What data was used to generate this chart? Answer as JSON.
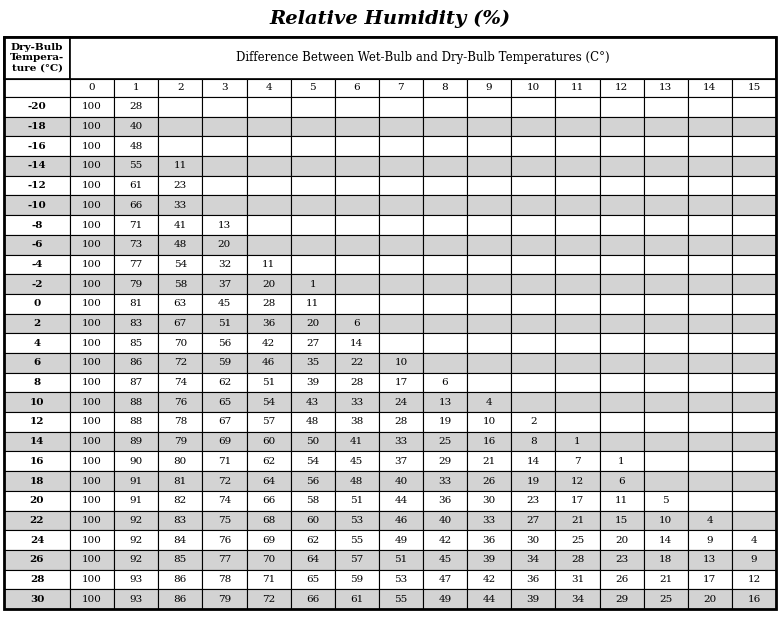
{
  "title": "Relative Humidity (%)",
  "col_header_main": "Difference Between Wet-Bulb and Dry-Bulb Temperatures (C°)",
  "row_header_label": "Dry-Bulb\nTempera-\nture (°C)",
  "col_labels": [
    "0",
    "1",
    "2",
    "3",
    "4",
    "5",
    "6",
    "7",
    "8",
    "9",
    "10",
    "11",
    "12",
    "13",
    "14",
    "15"
  ],
  "row_labels": [
    "-20",
    "-18",
    "-16",
    "-14",
    "-12",
    "-10",
    "-8",
    "-6",
    "-4",
    "-2",
    "0",
    "2",
    "4",
    "6",
    "8",
    "10",
    "12",
    "14",
    "16",
    "18",
    "20",
    "22",
    "24",
    "26",
    "28",
    "30"
  ],
  "table_data": [
    [
      "100",
      "28",
      "",
      "",
      "",
      "",
      "",
      "",
      "",
      "",
      "",
      "",
      "",
      "",
      "",
      ""
    ],
    [
      "100",
      "40",
      "",
      "",
      "",
      "",
      "",
      "",
      "",
      "",
      "",
      "",
      "",
      "",
      "",
      ""
    ],
    [
      "100",
      "48",
      "",
      "",
      "",
      "",
      "",
      "",
      "",
      "",
      "",
      "",
      "",
      "",
      "",
      ""
    ],
    [
      "100",
      "55",
      "11",
      "",
      "",
      "",
      "",
      "",
      "",
      "",
      "",
      "",
      "",
      "",
      "",
      ""
    ],
    [
      "100",
      "61",
      "23",
      "",
      "",
      "",
      "",
      "",
      "",
      "",
      "",
      "",
      "",
      "",
      "",
      ""
    ],
    [
      "100",
      "66",
      "33",
      "",
      "",
      "",
      "",
      "",
      "",
      "",
      "",
      "",
      "",
      "",
      "",
      ""
    ],
    [
      "100",
      "71",
      "41",
      "13",
      "",
      "",
      "",
      "",
      "",
      "",
      "",
      "",
      "",
      "",
      "",
      ""
    ],
    [
      "100",
      "73",
      "48",
      "20",
      "",
      "",
      "",
      "",
      "",
      "",
      "",
      "",
      "",
      "",
      "",
      ""
    ],
    [
      "100",
      "77",
      "54",
      "32",
      "11",
      "",
      "",
      "",
      "",
      "",
      "",
      "",
      "",
      "",
      "",
      ""
    ],
    [
      "100",
      "79",
      "58",
      "37",
      "20",
      "1",
      "",
      "",
      "",
      "",
      "",
      "",
      "",
      "",
      "",
      ""
    ],
    [
      "100",
      "81",
      "63",
      "45",
      "28",
      "11",
      "",
      "",
      "",
      "",
      "",
      "",
      "",
      "",
      "",
      ""
    ],
    [
      "100",
      "83",
      "67",
      "51",
      "36",
      "20",
      "6",
      "",
      "",
      "",
      "",
      "",
      "",
      "",
      "",
      ""
    ],
    [
      "100",
      "85",
      "70",
      "56",
      "42",
      "27",
      "14",
      "",
      "",
      "",
      "",
      "",
      "",
      "",
      "",
      ""
    ],
    [
      "100",
      "86",
      "72",
      "59",
      "46",
      "35",
      "22",
      "10",
      "",
      "",
      "",
      "",
      "",
      "",
      "",
      ""
    ],
    [
      "100",
      "87",
      "74",
      "62",
      "51",
      "39",
      "28",
      "17",
      "6",
      "",
      "",
      "",
      "",
      "",
      "",
      ""
    ],
    [
      "100",
      "88",
      "76",
      "65",
      "54",
      "43",
      "33",
      "24",
      "13",
      "4",
      "",
      "",
      "",
      "",
      "",
      ""
    ],
    [
      "100",
      "88",
      "78",
      "67",
      "57",
      "48",
      "38",
      "28",
      "19",
      "10",
      "2",
      "",
      "",
      "",
      "",
      ""
    ],
    [
      "100",
      "89",
      "79",
      "69",
      "60",
      "50",
      "41",
      "33",
      "25",
      "16",
      "8",
      "1",
      "",
      "",
      "",
      ""
    ],
    [
      "100",
      "90",
      "80",
      "71",
      "62",
      "54",
      "45",
      "37",
      "29",
      "21",
      "14",
      "7",
      "1",
      "",
      "",
      ""
    ],
    [
      "100",
      "91",
      "81",
      "72",
      "64",
      "56",
      "48",
      "40",
      "33",
      "26",
      "19",
      "12",
      "6",
      "",
      "",
      ""
    ],
    [
      "100",
      "91",
      "82",
      "74",
      "66",
      "58",
      "51",
      "44",
      "36",
      "30",
      "23",
      "17",
      "11",
      "5",
      "",
      ""
    ],
    [
      "100",
      "92",
      "83",
      "75",
      "68",
      "60",
      "53",
      "46",
      "40",
      "33",
      "27",
      "21",
      "15",
      "10",
      "4",
      ""
    ],
    [
      "100",
      "92",
      "84",
      "76",
      "69",
      "62",
      "55",
      "49",
      "42",
      "36",
      "30",
      "25",
      "20",
      "14",
      "9",
      "4"
    ],
    [
      "100",
      "92",
      "85",
      "77",
      "70",
      "64",
      "57",
      "51",
      "45",
      "39",
      "34",
      "28",
      "23",
      "18",
      "13",
      "9"
    ],
    [
      "100",
      "93",
      "86",
      "78",
      "71",
      "65",
      "59",
      "53",
      "47",
      "42",
      "36",
      "31",
      "26",
      "21",
      "17",
      "12"
    ],
    [
      "100",
      "93",
      "86",
      "79",
      "72",
      "66",
      "61",
      "55",
      "49",
      "44",
      "39",
      "34",
      "29",
      "25",
      "20",
      "16"
    ]
  ],
  "shaded_rows": [
    1,
    3,
    5,
    7,
    9,
    11,
    13,
    15,
    17,
    19,
    21,
    23,
    25
  ],
  "bg_color": "#ffffff",
  "shade_color": "#d3d3d3",
  "border_color": "#000000",
  "title_fontsize": 14,
  "cell_fontsize": 7.5
}
